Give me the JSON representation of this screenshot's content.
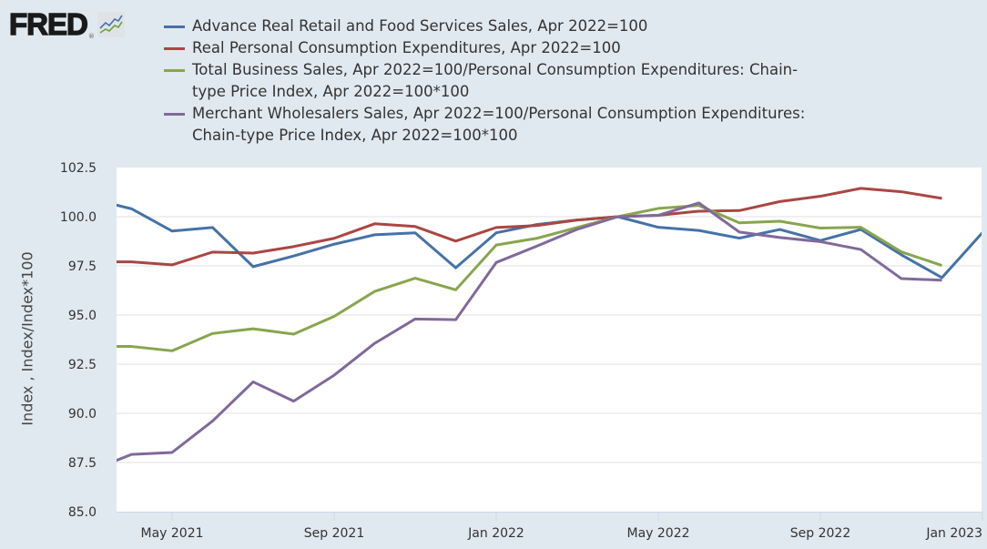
{
  "header": {
    "logo_text": "FRED",
    "logo_registered": "®",
    "logo_icon": "line-chart-icon"
  },
  "chart_data": {
    "type": "line",
    "title": "",
    "xlabel": "",
    "ylabel": "Index , Index/Index*100",
    "ylim": [
      85.0,
      102.5
    ],
    "y_ticks": [
      "85.0",
      "87.5",
      "90.0",
      "92.5",
      "95.0",
      "97.5",
      "100.0",
      "102.5"
    ],
    "x_ticks": [
      "May 2021",
      "Sep 2021",
      "Jan 2022",
      "May 2022",
      "Sep 2022",
      "Jan 2023"
    ],
    "grid": true,
    "legend_position": "top",
    "x": [
      "2021-03",
      "2021-04",
      "2021-05",
      "2021-06",
      "2021-07",
      "2021-08",
      "2021-09",
      "2021-10",
      "2021-11",
      "2021-12",
      "2022-01",
      "2022-02",
      "2022-03",
      "2022-04",
      "2022-05",
      "2022-06",
      "2022-07",
      "2022-08",
      "2022-09",
      "2022-10",
      "2022-11",
      "2022-12",
      "2023-01"
    ],
    "series": [
      {
        "name": "Advance Real Retail and Food Services Sales, Apr 2022=100",
        "color": "#4572a7",
        "values": [
          100.9,
          100.4,
          99.27,
          99.45,
          97.46,
          98.0,
          98.6,
          99.08,
          99.18,
          97.4,
          99.18,
          99.6,
          99.83,
          100.0,
          99.46,
          99.3,
          98.91,
          99.35,
          98.79,
          99.35,
          98.06,
          96.9,
          99.19
        ]
      },
      {
        "name": "Real Personal Consumption Expenditures, Apr 2022=100",
        "color": "#aa4643",
        "values": [
          97.7,
          97.7,
          97.55,
          98.2,
          98.15,
          98.48,
          98.9,
          99.64,
          99.5,
          98.76,
          99.45,
          99.55,
          99.83,
          100.0,
          100.07,
          100.28,
          100.31,
          100.77,
          101.04,
          101.44,
          101.27,
          100.93,
          null
        ]
      },
      {
        "name": "Total Business Sales, Apr 2022=100/Personal Consumption Expenditures: Chain-type Price Index, Apr 2022=100*100",
        "color": "#89a54e",
        "values": [
          93.4,
          93.4,
          93.18,
          94.06,
          94.3,
          94.03,
          94.93,
          96.2,
          96.87,
          96.28,
          98.56,
          98.9,
          99.45,
          100.0,
          100.42,
          100.57,
          99.69,
          99.77,
          99.42,
          99.46,
          98.21,
          97.52,
          null
        ]
      },
      {
        "name": "Merchant Wholesalers Sales, Apr 2022=100/Personal Consumption Expenditures: Chain-type Price Index, Apr 2022=100*100",
        "color": "#80699b",
        "values": [
          87.1,
          87.91,
          88.01,
          89.61,
          91.6,
          90.62,
          91.94,
          93.56,
          94.8,
          94.76,
          97.67,
          98.5,
          99.36,
          100.0,
          100.07,
          100.7,
          99.22,
          98.94,
          98.73,
          98.33,
          96.85,
          96.77,
          null
        ]
      }
    ]
  }
}
